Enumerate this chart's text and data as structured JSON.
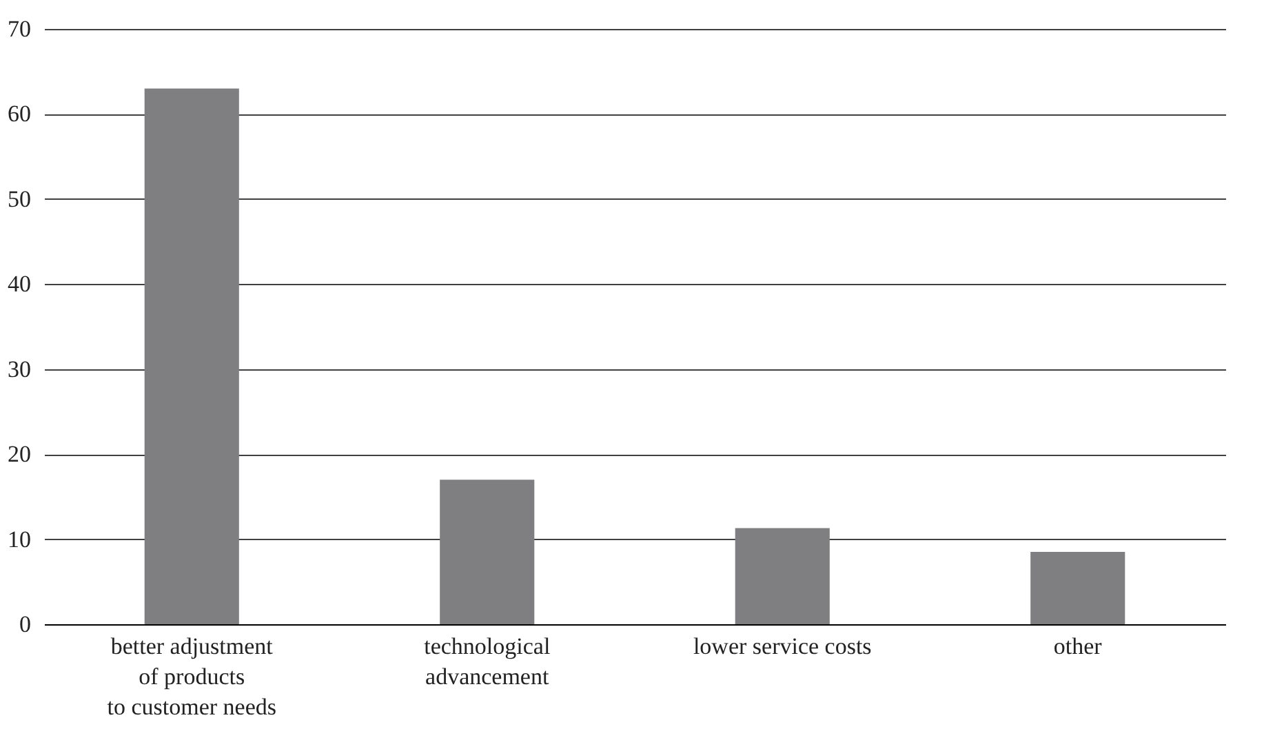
{
  "chart_data": {
    "type": "bar",
    "categories": [
      "better adjustment\nof products\nto customer needs",
      "technological\nadvancement",
      "lower service costs",
      "other"
    ],
    "values": [
      63,
      17,
      11.3,
      8.5
    ],
    "color": "#7f7f81",
    "ylim": [
      0,
      70
    ],
    "yticks": [
      0,
      10,
      20,
      30,
      40,
      50,
      60,
      70
    ],
    "grid": "y"
  }
}
